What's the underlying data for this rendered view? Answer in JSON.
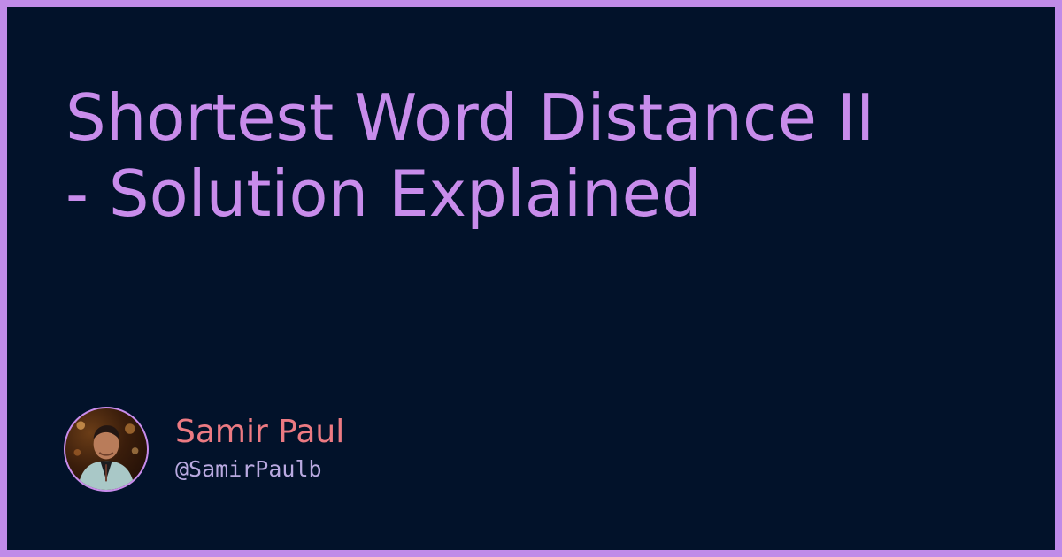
{
  "title": {
    "line1": "Shortest Word Distance II",
    "line2": "- Solution Explained"
  },
  "author": {
    "name": "Samir Paul",
    "handle": "@SamirPaulb",
    "avatar_icon": "profile-photo"
  },
  "colors": {
    "frame": "#c08be8",
    "background": "#02122a",
    "title": "#c88ceb",
    "author_name": "#ec7a82",
    "author_handle": "#b9a9e0"
  }
}
